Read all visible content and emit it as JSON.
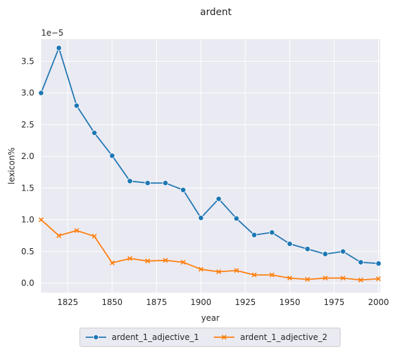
{
  "chart_data": {
    "type": "line",
    "title": "ardent",
    "xlabel": "year",
    "ylabel": "lexicon%",
    "offset_label": "1e−5",
    "xlim": [
      1810,
      2001
    ],
    "ylim": [
      -0.15,
      3.85
    ],
    "xticks": [
      1825,
      1850,
      1875,
      1900,
      1925,
      1950,
      1975,
      2000
    ],
    "yticks": [
      0.0,
      0.5,
      1.0,
      1.5,
      2.0,
      2.5,
      3.0,
      3.5
    ],
    "ytick_labels": [
      "0.0",
      "0.5",
      "1.0",
      "1.5",
      "2.0",
      "2.5",
      "3.0",
      "3.5"
    ],
    "grid": true,
    "legend_position": "bottom-center",
    "x": [
      1810,
      1820,
      1830,
      1840,
      1850,
      1860,
      1870,
      1880,
      1890,
      1900,
      1910,
      1920,
      1930,
      1940,
      1950,
      1960,
      1970,
      1980,
      1990,
      2000
    ],
    "series": [
      {
        "name": "ardent_1_adjective_1",
        "color": "#1f77b4",
        "marker": "circle",
        "values": [
          3.0,
          3.71,
          2.8,
          2.37,
          2.01,
          1.61,
          1.58,
          1.58,
          1.47,
          1.03,
          1.33,
          1.02,
          0.76,
          0.8,
          0.62,
          0.54,
          0.46,
          0.5,
          0.33,
          0.31
        ]
      },
      {
        "name": "ardent_1_adjective_2",
        "color": "#ff7f0e",
        "marker": "x",
        "values": [
          1.0,
          0.75,
          0.83,
          0.74,
          0.32,
          0.39,
          0.35,
          0.36,
          0.33,
          0.22,
          0.18,
          0.2,
          0.13,
          0.13,
          0.08,
          0.06,
          0.08,
          0.08,
          0.05,
          0.07
        ]
      }
    ]
  }
}
